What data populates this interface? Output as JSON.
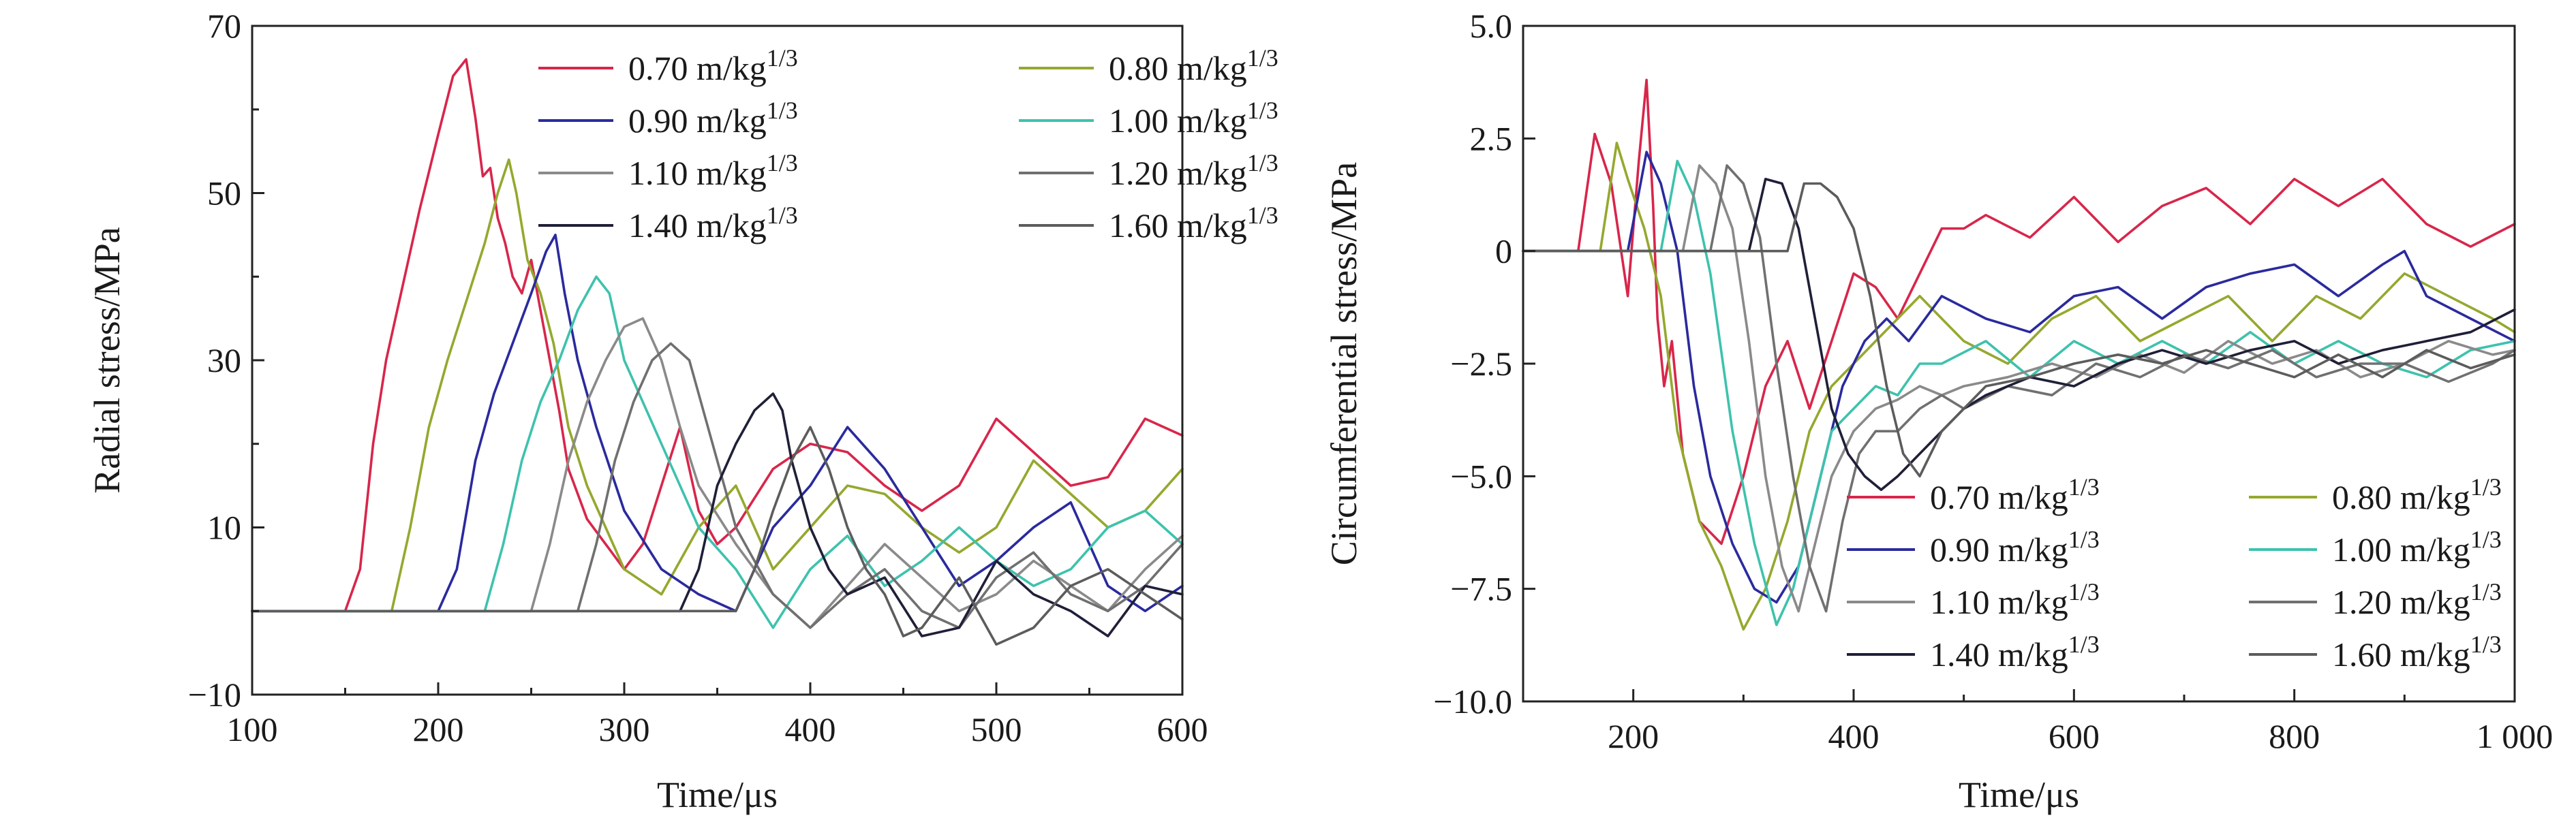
{
  "chart_data": [
    {
      "type": "line",
      "xlabel": "Time/μs",
      "ylabel": "Radial stress/MPa",
      "xlim": [
        100,
        600
      ],
      "ylim": [
        -10,
        70
      ],
      "xticks": [
        "100",
        "200",
        "300",
        "400",
        "500",
        "600"
      ],
      "yticks": [
        "−10",
        "10",
        "30",
        "50",
        "70"
      ],
      "legend": {
        "placement": "top-right",
        "columns": 2
      },
      "series": [
        {
          "name": "0.70 m/kg",
          "exp": "1/3",
          "color": "#d8264b",
          "x": [
            100,
            150,
            158,
            165,
            172,
            180,
            190,
            200,
            208,
            215,
            220,
            224,
            228,
            232,
            236,
            240,
            245,
            250,
            255,
            260,
            265,
            270,
            275,
            280,
            290,
            300,
            310,
            320,
            330,
            340,
            350,
            360,
            380,
            400,
            420,
            440,
            460,
            480,
            500,
            520,
            540,
            560,
            580,
            600
          ],
          "y": [
            0,
            0,
            5,
            20,
            30,
            38,
            48,
            57,
            64,
            66,
            59,
            52,
            53,
            47,
            44,
            40,
            38,
            42,
            36,
            30,
            24,
            17,
            14,
            11,
            8,
            5,
            8,
            15,
            22,
            12,
            8,
            10,
            17,
            20,
            19,
            15,
            12,
            15,
            23,
            19,
            15,
            16,
            23,
            21
          ]
        },
        {
          "name": "0.80 m/kg",
          "exp": "1/3",
          "color": "#95a82e",
          "x": [
            100,
            175,
            185,
            195,
            205,
            215,
            225,
            232,
            238,
            242,
            248,
            255,
            262,
            270,
            280,
            300,
            320,
            340,
            360,
            380,
            400,
            420,
            440,
            460,
            480,
            500,
            520,
            540,
            560,
            580,
            600
          ],
          "y": [
            0,
            0,
            10,
            22,
            30,
            37,
            44,
            50,
            54,
            50,
            42,
            38,
            32,
            22,
            15,
            5,
            2,
            10,
            15,
            5,
            10,
            15,
            14,
            10,
            7,
            10,
            18,
            14,
            10,
            12,
            17
          ]
        },
        {
          "name": "0.90 m/kg",
          "exp": "1/3",
          "color": "#2a2a9e",
          "x": [
            100,
            200,
            210,
            220,
            230,
            240,
            250,
            258,
            263,
            268,
            275,
            285,
            300,
            320,
            340,
            360,
            380,
            400,
            420,
            440,
            460,
            480,
            500,
            520,
            540,
            560,
            580,
            600
          ],
          "y": [
            0,
            0,
            5,
            18,
            26,
            32,
            38,
            43,
            45,
            38,
            30,
            22,
            12,
            5,
            2,
            0,
            10,
            15,
            22,
            17,
            10,
            3,
            6,
            10,
            13,
            3,
            0,
            3
          ]
        },
        {
          "name": "1.00 m/kg",
          "exp": "1/3",
          "color": "#3ec2ad",
          "x": [
            100,
            225,
            235,
            245,
            255,
            265,
            275,
            285,
            292,
            300,
            310,
            320,
            340,
            360,
            380,
            400,
            420,
            440,
            460,
            480,
            500,
            520,
            540,
            560,
            580,
            600
          ],
          "y": [
            0,
            0,
            8,
            18,
            25,
            30,
            36,
            40,
            38,
            30,
            25,
            20,
            10,
            5,
            -2,
            5,
            9,
            3,
            6,
            10,
            6,
            3,
            5,
            10,
            12,
            8
          ]
        },
        {
          "name": "1.10 m/kg",
          "exp": "1/3",
          "color": "#8a8a8a",
          "x": [
            100,
            250,
            260,
            270,
            280,
            290,
            300,
            310,
            320,
            330,
            340,
            360,
            380,
            400,
            420,
            440,
            460,
            480,
            500,
            520,
            540,
            560,
            580,
            600
          ],
          "y": [
            0,
            0,
            8,
            18,
            25,
            30,
            34,
            35,
            30,
            22,
            15,
            8,
            2,
            -2,
            3,
            8,
            4,
            0,
            2,
            6,
            3,
            0,
            5,
            9
          ]
        },
        {
          "name": "1.20 m/kg",
          "exp": "1/3",
          "color": "#707070",
          "x": [
            100,
            275,
            285,
            295,
            305,
            315,
            325,
            335,
            345,
            360,
            380,
            400,
            420,
            440,
            460,
            480,
            500,
            520,
            540,
            560,
            580,
            600
          ],
          "y": [
            0,
            0,
            8,
            18,
            25,
            30,
            32,
            30,
            22,
            10,
            2,
            -2,
            2,
            5,
            0,
            -2,
            4,
            7,
            2,
            0,
            3,
            8
          ]
        },
        {
          "name": "1.40 m/kg",
          "exp": "1/3",
          "color": "#1f1f38",
          "x": [
            100,
            330,
            340,
            350,
            360,
            370,
            380,
            385,
            390,
            400,
            410,
            420,
            440,
            460,
            480,
            500,
            520,
            540,
            560,
            580,
            600
          ],
          "y": [
            0,
            0,
            5,
            15,
            20,
            24,
            26,
            24,
            18,
            10,
            5,
            2,
            4,
            -3,
            -2,
            6,
            2,
            0,
            -3,
            3,
            2
          ]
        },
        {
          "name": "1.60 m/kg",
          "exp": "1/3",
          "color": "#5c5c5c",
          "x": [
            100,
            360,
            370,
            380,
            390,
            400,
            410,
            420,
            430,
            440,
            450,
            460,
            480,
            500,
            520,
            540,
            560,
            580,
            600
          ],
          "y": [
            0,
            0,
            5,
            12,
            18,
            22,
            17,
            10,
            5,
            2,
            -3,
            -2,
            4,
            -4,
            -2,
            3,
            5,
            2,
            -1
          ]
        }
      ]
    },
    {
      "type": "line",
      "xlabel": "Time/μs",
      "ylabel": "Circumferential stress/MPa",
      "xlim": [
        100,
        1000
      ],
      "ylim": [
        -10,
        5
      ],
      "xticks": [
        "200",
        "400",
        "600",
        "800",
        "1 000"
      ],
      "yticks": [
        "−10.0",
        "−7.5",
        "−5.0",
        "−2.5",
        "0",
        "2.5",
        "5.0"
      ],
      "legend": {
        "placement": "bottom-right",
        "columns": 2
      },
      "series": [
        {
          "name": "0.70 m/kg",
          "exp": "1/3",
          "color": "#d8264b",
          "x": [
            100,
            150,
            165,
            180,
            195,
            205,
            212,
            218,
            222,
            228,
            235,
            245,
            260,
            280,
            300,
            320,
            340,
            360,
            380,
            400,
            420,
            440,
            460,
            480,
            500,
            520,
            560,
            600,
            640,
            680,
            720,
            760,
            800,
            840,
            880,
            920,
            960,
            1000
          ],
          "y": [
            0,
            0,
            2.6,
            1.5,
            -1,
            2,
            3.8,
            1,
            -1.5,
            -3,
            -2,
            -4.5,
            -6,
            -6.5,
            -5,
            -3,
            -2,
            -3.5,
            -2,
            -0.5,
            -0.8,
            -1.5,
            -0.5,
            0.5,
            0.5,
            0.8,
            0.3,
            1.2,
            0.2,
            1,
            1.4,
            0.6,
            1.6,
            1,
            1.6,
            0.6,
            0.1,
            0.6
          ]
        },
        {
          "name": "0.80 m/kg",
          "exp": "1/3",
          "color": "#95a82e",
          "x": [
            100,
            170,
            185,
            195,
            210,
            225,
            240,
            260,
            280,
            300,
            320,
            340,
            360,
            380,
            400,
            420,
            440,
            460,
            480,
            500,
            540,
            580,
            620,
            660,
            700,
            740,
            780,
            820,
            860,
            900,
            940,
            980,
            1000
          ],
          "y": [
            0,
            0,
            2.4,
            1.6,
            0.5,
            -1,
            -4,
            -6,
            -7,
            -8.4,
            -7.5,
            -6,
            -4,
            -3,
            -2.5,
            -2,
            -1.5,
            -1,
            -1.5,
            -2,
            -2.5,
            -1.5,
            -1,
            -2,
            -1.5,
            -1,
            -2,
            -1,
            -1.5,
            -0.5,
            -1,
            -1.5,
            -1.8
          ]
        },
        {
          "name": "0.90 m/kg",
          "exp": "1/3",
          "color": "#2a2a9e",
          "x": [
            100,
            195,
            212,
            225,
            240,
            255,
            270,
            290,
            310,
            330,
            350,
            370,
            390,
            410,
            430,
            450,
            480,
            520,
            560,
            600,
            640,
            680,
            720,
            760,
            800,
            840,
            880,
            900,
            920,
            960,
            1000
          ],
          "y": [
            0,
            0,
            2.2,
            1.5,
            0,
            -3,
            -5,
            -6.5,
            -7.5,
            -7.8,
            -7,
            -5,
            -3,
            -2,
            -1.5,
            -2,
            -1,
            -1.5,
            -1.8,
            -1,
            -0.8,
            -1.5,
            -0.8,
            -0.5,
            -0.3,
            -1,
            -0.3,
            0,
            -1,
            -1.5,
            -2
          ]
        },
        {
          "name": "1.00 m/kg",
          "exp": "1/3",
          "color": "#3ec2ad",
          "x": [
            100,
            225,
            240,
            255,
            270,
            290,
            310,
            330,
            345,
            360,
            380,
            400,
            420,
            440,
            460,
            480,
            520,
            560,
            600,
            640,
            680,
            720,
            760,
            800,
            840,
            880,
            920,
            960,
            1000
          ],
          "y": [
            0,
            0,
            2,
            1.2,
            -0.5,
            -4,
            -6.5,
            -8.3,
            -7.5,
            -6,
            -4,
            -3.5,
            -3,
            -3.2,
            -2.5,
            -2.5,
            -2,
            -2.8,
            -2,
            -2.5,
            -2,
            -2.5,
            -1.8,
            -2.5,
            -2,
            -2.5,
            -2.8,
            -2.2,
            -2
          ]
        },
        {
          "name": "1.10 m/kg",
          "exp": "1/3",
          "color": "#8a8a8a",
          "x": [
            100,
            245,
            260,
            275,
            290,
            305,
            320,
            335,
            350,
            365,
            380,
            400,
            420,
            440,
            460,
            480,
            500,
            540,
            580,
            620,
            660,
            700,
            740,
            780,
            820,
            860,
            900,
            940,
            980,
            1000
          ],
          "y": [
            0,
            0,
            1.9,
            1.5,
            0.5,
            -2,
            -5,
            -7,
            -8,
            -6.5,
            -5,
            -4,
            -3.5,
            -3.3,
            -3,
            -3.2,
            -3,
            -2.8,
            -2.5,
            -2.8,
            -2.3,
            -2.7,
            -2,
            -2.5,
            -2.2,
            -2.8,
            -2.5,
            -2,
            -2.3,
            -2.2
          ]
        },
        {
          "name": "1.20 m/kg",
          "exp": "1/3",
          "color": "#707070",
          "x": [
            100,
            270,
            285,
            300,
            315,
            330,
            345,
            360,
            375,
            390,
            405,
            420,
            440,
            460,
            480,
            500,
            540,
            580,
            620,
            660,
            700,
            740,
            780,
            820,
            860,
            900,
            940,
            980,
            1000
          ],
          "y": [
            0,
            0,
            1.9,
            1.5,
            0.3,
            -2.5,
            -5,
            -7,
            -8,
            -6,
            -4.5,
            -4,
            -4,
            -3.5,
            -3.2,
            -3.5,
            -3,
            -3.2,
            -2.5,
            -2.8,
            -2.3,
            -2.6,
            -2.2,
            -2.8,
            -2.5,
            -2.5,
            -2.9,
            -2.5,
            -2.2
          ]
        },
        {
          "name": "1.40 m/kg",
          "exp": "1/3",
          "color": "#1f1f38",
          "x": [
            100,
            305,
            320,
            335,
            350,
            365,
            380,
            395,
            410,
            425,
            440,
            460,
            480,
            500,
            520,
            560,
            600,
            640,
            680,
            720,
            760,
            800,
            840,
            880,
            920,
            960,
            1000
          ],
          "y": [
            0,
            0,
            1.6,
            1.5,
            0.5,
            -1.5,
            -3.5,
            -4.5,
            -5,
            -5.3,
            -5,
            -4.5,
            -4,
            -3.5,
            -3.2,
            -2.8,
            -3,
            -2.5,
            -2.2,
            -2.5,
            -2.2,
            -2,
            -2.5,
            -2.2,
            -2,
            -1.8,
            -1.3
          ]
        },
        {
          "name": "1.60 m/kg",
          "exp": "1/3",
          "color": "#5c5c5c",
          "x": [
            100,
            340,
            355,
            370,
            385,
            400,
            415,
            430,
            445,
            460,
            480,
            500,
            520,
            560,
            600,
            640,
            680,
            720,
            760,
            800,
            840,
            880,
            920,
            960,
            1000
          ],
          "y": [
            0,
            0,
            1.5,
            1.5,
            1.2,
            0.5,
            -1,
            -3,
            -4.5,
            -5,
            -4,
            -3.5,
            -3,
            -2.8,
            -2.5,
            -2.3,
            -2.5,
            -2.2,
            -2.5,
            -2.8,
            -2.3,
            -2.8,
            -2.2,
            -2.6,
            -2.3
          ]
        }
      ]
    }
  ]
}
